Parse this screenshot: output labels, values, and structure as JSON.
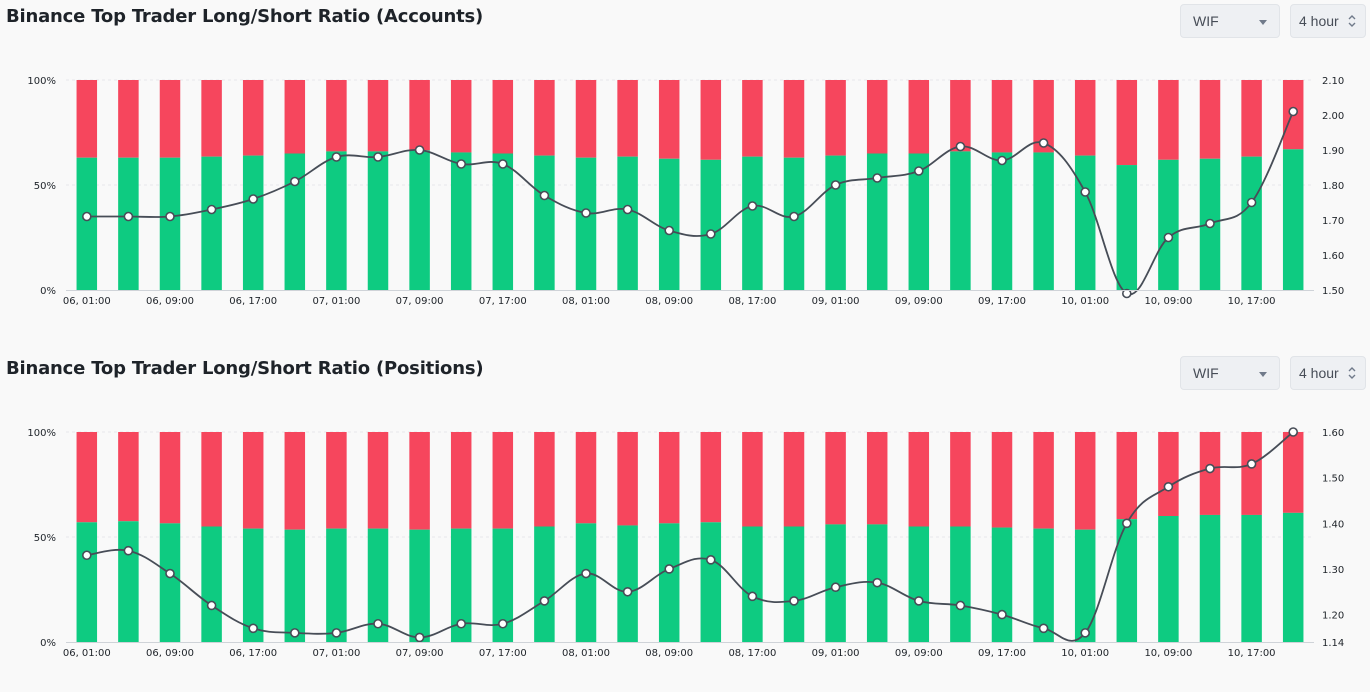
{
  "controls": {
    "symbol": "WIF",
    "interval": "4 hour"
  },
  "colors": {
    "long": "#0ecb81",
    "short": "#f6465d",
    "line": "#474d57",
    "point_fill": "#ffffff"
  },
  "chart_data": [
    {
      "type": "bar",
      "title": "Binance Top Trader Long/Short Ratio (Accounts)",
      "stacked_percent": true,
      "x_tick_labels": [
        "06, 01:00",
        "06, 09:00",
        "06, 17:00",
        "07, 01:00",
        "07, 09:00",
        "07, 17:00",
        "08, 01:00",
        "08, 09:00",
        "08, 17:00",
        "09, 01:00",
        "09, 09:00",
        "09, 17:00",
        "10, 01:00",
        "10, 09:00",
        "10, 17:00"
      ],
      "y_left_ticks": [
        "0%",
        "50%",
        "100%"
      ],
      "y_right_ticks": [
        "1.50",
        "1.60",
        "1.70",
        "1.80",
        "1.90",
        "2.00",
        "2.10"
      ],
      "y_right_range": [
        1.5,
        2.1
      ],
      "grid": true,
      "series": [
        {
          "kind": "bar",
          "values": [
            63,
            63,
            63,
            63.5,
            64,
            65,
            66,
            66,
            66.5,
            65.5,
            65,
            64,
            63,
            63.5,
            62.5,
            62,
            63.5,
            63,
            64,
            65,
            65,
            66,
            65.5,
            65.5,
            64,
            59.5,
            62,
            62.5,
            63.5,
            67
          ]
        },
        {
          "kind": "line",
          "values": [
            1.71,
            1.71,
            1.71,
            1.73,
            1.76,
            1.81,
            1.88,
            1.88,
            1.9,
            1.86,
            1.86,
            1.77,
            1.72,
            1.73,
            1.67,
            1.66,
            1.74,
            1.71,
            1.8,
            1.82,
            1.84,
            1.91,
            1.87,
            1.92,
            1.78,
            1.49,
            1.65,
            1.69,
            1.75,
            2.01
          ]
        }
      ]
    },
    {
      "type": "bar",
      "title": "Binance Top Trader Long/Short Ratio (Positions)",
      "stacked_percent": true,
      "x_tick_labels": [
        "06, 01:00",
        "06, 09:00",
        "06, 17:00",
        "07, 01:00",
        "07, 09:00",
        "07, 17:00",
        "08, 01:00",
        "08, 09:00",
        "08, 17:00",
        "09, 01:00",
        "09, 09:00",
        "09, 17:00",
        "10, 01:00",
        "10, 09:00",
        "10, 17:00"
      ],
      "y_left_ticks": [
        "0%",
        "50%",
        "100%"
      ],
      "y_right_ticks": [
        "1.14",
        "1.20",
        "1.30",
        "1.40",
        "1.50",
        "1.60"
      ],
      "y_right_range": [
        1.14,
        1.6
      ],
      "grid": true,
      "series": [
        {
          "kind": "bar",
          "values": [
            57,
            57.5,
            56.5,
            55,
            54,
            53.5,
            54,
            54,
            53.5,
            54,
            54,
            55,
            56.5,
            55.5,
            56.5,
            57,
            55,
            55,
            56,
            56,
            55,
            55,
            54.5,
            54,
            53.5,
            58.5,
            60,
            60.5,
            60.5,
            61.5
          ]
        },
        {
          "kind": "line",
          "values": [
            1.33,
            1.34,
            1.29,
            1.22,
            1.17,
            1.16,
            1.16,
            1.18,
            1.15,
            1.18,
            1.18,
            1.23,
            1.29,
            1.25,
            1.3,
            1.32,
            1.24,
            1.23,
            1.26,
            1.27,
            1.23,
            1.22,
            1.2,
            1.17,
            1.16,
            1.4,
            1.48,
            1.52,
            1.53,
            1.6
          ]
        }
      ]
    }
  ]
}
